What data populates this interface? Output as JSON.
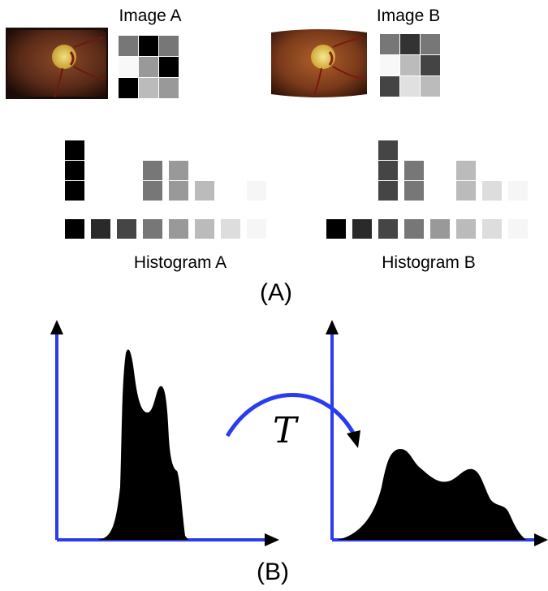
{
  "panel_a": {
    "label": "(A)",
    "image_a": {
      "title": "Image A",
      "photo": "retinal fundus photograph",
      "matrix": [
        [
          "#777777",
          "#000000",
          "#777777"
        ],
        [
          "#f8f8f8",
          "#999999",
          "#000000"
        ],
        [
          "#000000",
          "#bbbbbb",
          "#999999"
        ]
      ]
    },
    "image_b": {
      "title": "Image B",
      "photo": "retinal fundus photograph",
      "matrix": [
        [
          "#777777",
          "#333333",
          "#777777"
        ],
        [
          "#f8f8f8",
          "#bbbbbb",
          "#444444"
        ],
        [
          "#444444",
          "#e0e0e0",
          "#bbbbbb"
        ]
      ]
    },
    "histogram_a": {
      "caption": "Histogram A",
      "scale": [
        "#000000",
        "#2a2a2a",
        "#454545",
        "#777777",
        "#999999",
        "#bbbbbb",
        "#dddddd",
        "#f6f6f6"
      ],
      "counts": [
        3,
        0,
        0,
        2,
        2,
        1,
        0,
        1
      ]
    },
    "histogram_b": {
      "caption": "Histogram B",
      "scale": [
        "#000000",
        "#2a2a2a",
        "#454545",
        "#777777",
        "#999999",
        "#bbbbbb",
        "#dddddd",
        "#f6f6f6"
      ],
      "counts": [
        0,
        0,
        3,
        2,
        0,
        2,
        1,
        1
      ]
    }
  },
  "panel_b": {
    "label": "(B)",
    "transform_symbol": "T",
    "colors": {
      "axis": "#2a3bf0",
      "arrow": "#2a3bf0",
      "fill": "#000000"
    }
  }
}
